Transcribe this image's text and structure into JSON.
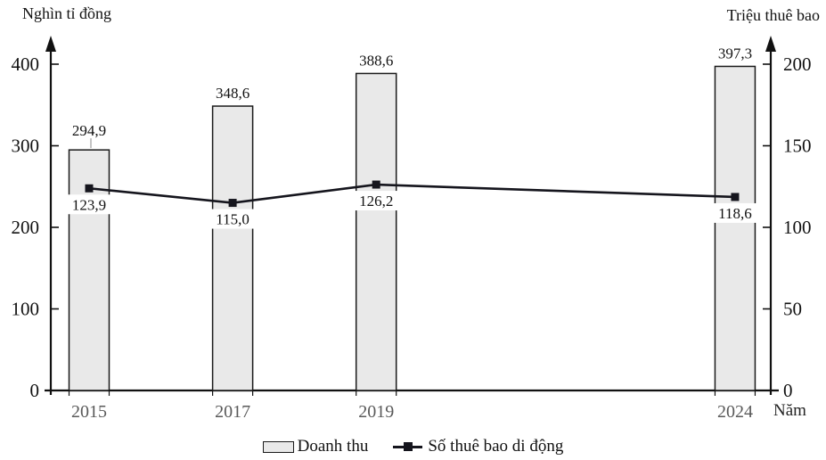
{
  "chart_data": {
    "type": "combo-bar-line",
    "x_unit": "Năm",
    "categories": [
      "2015",
      "2017",
      "2019",
      "2024"
    ],
    "x_years": [
      2015,
      2017,
      2019,
      2024
    ],
    "left_axis": {
      "title": "Nghìn tỉ đồng",
      "range": [
        0,
        400
      ],
      "tick_values": [
        0,
        100,
        200,
        300,
        400
      ],
      "tick_labels": [
        "0",
        "100",
        "200",
        "300",
        "400"
      ]
    },
    "right_axis": {
      "title": "Triệu thuê bao",
      "range": [
        0,
        200
      ],
      "tick_values": [
        0,
        50,
        100,
        150,
        200
      ],
      "tick_labels": [
        "0",
        "50",
        "100",
        "150",
        "200"
      ]
    },
    "series": [
      {
        "name": "Doanh thu",
        "type": "bar",
        "axis": "left",
        "values": [
          294.9,
          348.6,
          388.6,
          397.3
        ],
        "value_labels": [
          "294,9",
          "348,6",
          "388,6",
          "397,3"
        ],
        "fill": "#e9e9e9",
        "stroke": "#1a1a1a"
      },
      {
        "name": "Số thuê bao di động",
        "type": "line",
        "axis": "right",
        "values": [
          123.9,
          115.0,
          126.2,
          118.6
        ],
        "value_labels": [
          "123,9",
          "115,0",
          "126,2",
          "118,6"
        ],
        "color": "#15151d",
        "marker": "filled-square"
      }
    ],
    "legend_position": "bottom-center",
    "grid": false,
    "colors": {
      "axis": "#111111",
      "x_tick_label": "#595959",
      "value_label": "#111111",
      "leader_line": "#8a8a8a",
      "background": "#ffffff"
    }
  }
}
